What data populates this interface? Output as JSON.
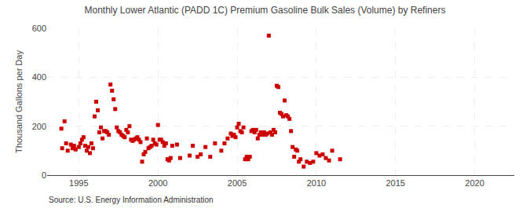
{
  "chart_data": {
    "type": "scatter",
    "title": "Monthly Lower Atlantic (PADD 1C) Premium Gasoline Bulk Sales (Volume) by Refiners",
    "ylabel": "Thousand Gallons per Day",
    "annotations": [
      "Source: U.S. Energy Information Administration"
    ],
    "color": "#cc0000",
    "marker": "square",
    "grid": true,
    "xlim": [
      1993.0,
      2022.5
    ],
    "ylim": [
      0,
      600
    ],
    "xticks": [
      1995,
      2000,
      2005,
      2010,
      2015,
      2020
    ],
    "yticks": [
      0,
      200,
      400,
      600
    ],
    "x": [
      1993.9,
      1993.95,
      1994.1,
      1994.2,
      1994.3,
      1994.5,
      1994.6,
      1994.7,
      1994.8,
      1995.0,
      1995.1,
      1995.2,
      1995.3,
      1995.4,
      1995.5,
      1995.6,
      1995.7,
      1995.8,
      1995.9,
      1996.0,
      1996.1,
      1996.2,
      1996.3,
      1996.4,
      1996.5,
      1996.6,
      1996.7,
      1996.8,
      1996.9,
      1997.0,
      1997.1,
      1997.2,
      1997.3,
      1997.4,
      1997.5,
      1997.6,
      1997.7,
      1997.8,
      1997.9,
      1998.0,
      1998.1,
      1998.2,
      1998.3,
      1998.4,
      1998.5,
      1998.6,
      1998.7,
      1998.8,
      1998.9,
      1999.0,
      1999.1,
      1999.2,
      1999.3,
      1999.4,
      1999.5,
      1999.6,
      1999.7,
      1999.8,
      1999.9,
      2000.0,
      2000.1,
      2000.2,
      2000.3,
      2000.4,
      2000.5,
      2000.6,
      2000.7,
      2000.8,
      2000.9,
      2001.2,
      2001.4,
      2002.0,
      2002.2,
      2002.5,
      2002.7,
      2003.0,
      2003.3,
      2003.6,
      2004.0,
      2004.2,
      2004.4,
      2004.6,
      2004.7,
      2004.8,
      2004.9,
      2005.0,
      2005.1,
      2005.2,
      2005.3,
      2005.4,
      2005.5,
      2005.6,
      2005.7,
      2005.8,
      2005.9,
      2006.0,
      2006.1,
      2006.2,
      2006.3,
      2006.4,
      2006.5,
      2006.6,
      2006.7,
      2006.8,
      2006.9,
      2007.0,
      2007.1,
      2007.2,
      2007.3,
      2007.4,
      2007.5,
      2007.6,
      2007.7,
      2007.8,
      2007.9,
      2008.0,
      2008.1,
      2008.2,
      2008.3,
      2008.4,
      2008.5,
      2008.6,
      2008.7,
      2008.8,
      2008.9,
      2009.0,
      2009.2,
      2009.4,
      2009.6,
      2009.8,
      2010.0,
      2010.2,
      2010.4,
      2010.6,
      2010.8,
      2011.0,
      2011.5
    ],
    "values": [
      190,
      110,
      220,
      130,
      100,
      125,
      110,
      120,
      105,
      115,
      130,
      145,
      155,
      120,
      100,
      115,
      90,
      130,
      110,
      240,
      300,
      265,
      175,
      195,
      150,
      180,
      180,
      175,
      165,
      370,
      345,
      310,
      270,
      195,
      180,
      175,
      165,
      160,
      155,
      185,
      175,
      200,
      145,
      140,
      145,
      150,
      155,
      145,
      135,
      55,
      85,
      95,
      150,
      110,
      115,
      120,
      145,
      130,
      125,
      205,
      145,
      145,
      135,
      120,
      130,
      65,
      60,
      70,
      120,
      125,
      70,
      80,
      120,
      75,
      85,
      115,
      75,
      130,
      100,
      130,
      150,
      170,
      160,
      165,
      155,
      195,
      210,
      180,
      175,
      195,
      65,
      75,
      65,
      75,
      180,
      185,
      175,
      185,
      150,
      165,
      175,
      165,
      175,
      165,
      170,
      570,
      175,
      165,
      185,
      175,
      365,
      360,
      255,
      250,
      240,
      305,
      245,
      240,
      230,
      180,
      115,
      75,
      105,
      100,
      55,
      65,
      35,
      55,
      50,
      55,
      90,
      80,
      85,
      70,
      60,
      100,
      65
    ]
  }
}
